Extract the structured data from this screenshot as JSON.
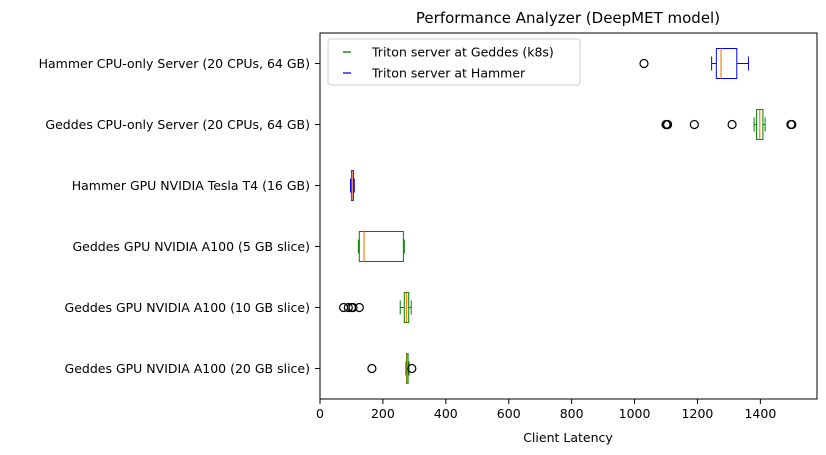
{
  "chart_data": {
    "type": "boxplot-horizontal",
    "title": "Performance Analyzer (DeepMET model)",
    "xlabel": "Client Latency",
    "ylabel": "",
    "xlim": [
      0,
      1580
    ],
    "xticks": [
      0,
      200,
      400,
      600,
      800,
      1000,
      1200,
      1400
    ],
    "grid": false,
    "legend_position": "top-left",
    "legend": [
      {
        "label": "Triton server at Geddes (k8s)",
        "color": "#008000"
      },
      {
        "label": "Triton server at Hammer",
        "color": "#0000ff"
      }
    ],
    "median_color": "#ff7f0e",
    "boxes": [
      {
        "label": "Hammer CPU-only Server (20 CPUs, 64 GB)",
        "series": "Triton server at Hammer",
        "color": "#0000ff",
        "whislo": 1245,
        "q1": 1260,
        "median": 1275,
        "q3": 1325,
        "whishi": 1362,
        "fliers": [
          1030
        ]
      },
      {
        "label": "Geddes CPU-only Server (20 CPUs, 64 GB)",
        "series": "Triton server at Geddes (k8s)",
        "color": "#008000",
        "whislo": 1380,
        "q1": 1388,
        "median": 1398,
        "q3": 1408,
        "whishi": 1415,
        "fliers": [
          1100,
          1102,
          1105,
          1190,
          1310,
          1497,
          1500
        ]
      },
      {
        "label": "Hammer GPU NVIDIA Tesla T4 (16 GB)",
        "series": "Triton server at Hammer",
        "color": "#0000ff",
        "whislo": 97,
        "q1": 100,
        "median": 102,
        "q3": 106,
        "whishi": 109,
        "fliers": []
      },
      {
        "label": "Geddes GPU NVIDIA A100 (5 GB slice)",
        "series": "Triton server at Geddes (k8s)",
        "color": "#008000",
        "whislo": 122,
        "q1": 125,
        "median": 140,
        "q3": 265,
        "whishi": 268,
        "fliers": []
      },
      {
        "label": "Geddes GPU NVIDIA A100 (10 GB slice)",
        "series": "Triton server at Geddes (k8s)",
        "color": "#008000",
        "whislo": 255,
        "q1": 268,
        "median": 275,
        "q3": 282,
        "whishi": 290,
        "fliers": [
          75,
          90,
          100,
          105,
          125
        ]
      },
      {
        "label": "Geddes GPU NVIDIA A100 (20 GB slice)",
        "series": "Triton server at Geddes (k8s)",
        "color": "#008000",
        "whislo": 273,
        "q1": 275,
        "median": 277,
        "q3": 280,
        "whishi": 283,
        "fliers": [
          165,
          292
        ]
      }
    ]
  }
}
